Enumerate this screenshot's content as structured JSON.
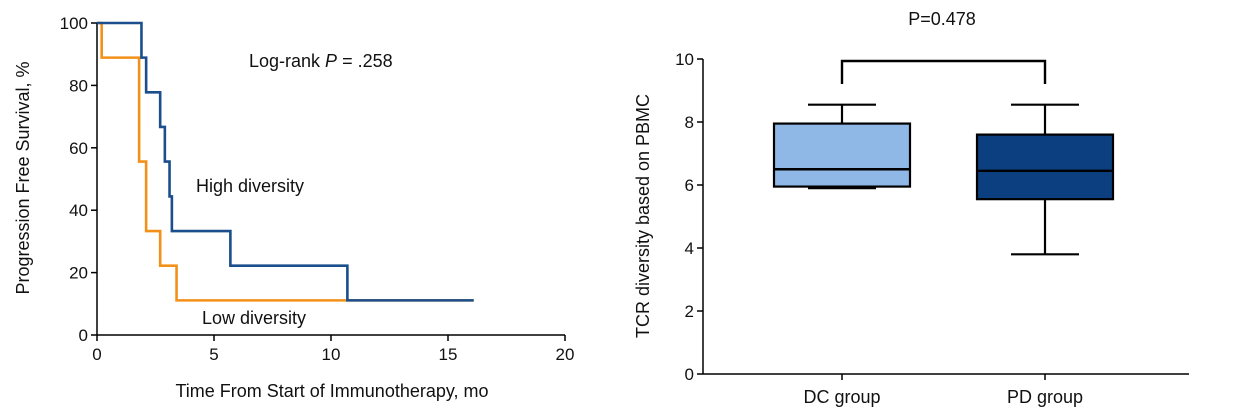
{
  "chart_data": [
    {
      "type": "line",
      "subtype": "kaplan-meier",
      "xlabel": "Time From Start of Immunotherapy, mo",
      "ylabel": "Progression Free Survival, %",
      "xlim": [
        0,
        20
      ],
      "ylim": [
        0,
        100
      ],
      "xticks": [
        0,
        5,
        10,
        15,
        20
      ],
      "yticks": [
        0,
        20,
        40,
        60,
        80,
        100
      ],
      "annotation": {
        "prefix": "Log-rank ",
        "p_symbol": "P",
        "suffix": " = .258"
      },
      "series": [
        {
          "label": "High diversity",
          "color": "#1a4e8c",
          "x": [
            0,
            1.9,
            2.1,
            2.7,
            2.9,
            2.9,
            3.1,
            3.2,
            5.7,
            10.7,
            16.1
          ],
          "y": [
            100,
            88.9,
            77.8,
            66.7,
            55.6,
            55.6,
            44.4,
            33.3,
            22.2,
            11.1,
            11.1
          ]
        },
        {
          "label": "Low diversity",
          "color": "#f39019",
          "x": [
            0,
            0.2,
            1.8,
            2.1,
            2.7,
            3.4,
            16.1
          ],
          "y": [
            100,
            88.9,
            55.6,
            33.3,
            22.2,
            11.1,
            11.1
          ]
        }
      ]
    },
    {
      "type": "box",
      "ylabel": "TCR diversity based on PBMC",
      "ylim": [
        0,
        10
      ],
      "yticks": [
        0,
        2,
        4,
        6,
        8,
        10
      ],
      "categories": [
        "DC group",
        "PD group"
      ],
      "boxes": [
        {
          "label": "DC group",
          "color": "#8fb8e6",
          "min": 5.9,
          "q1": 5.95,
          "median": 6.5,
          "q3": 7.95,
          "max": 8.55
        },
        {
          "label": "PD group",
          "color": "#0b3f80",
          "min": 3.8,
          "q1": 5.55,
          "median": 6.45,
          "q3": 7.6,
          "max": 8.55
        }
      ],
      "significance": {
        "label": "P=0.478"
      }
    }
  ]
}
